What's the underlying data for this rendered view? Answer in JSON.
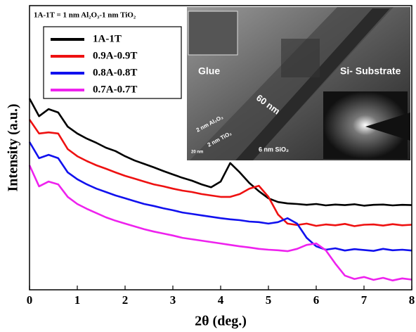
{
  "chart_data": {
    "type": "line",
    "annotation": "1A-1T = 1 nm Al₂O₃-1 nm TiO₂",
    "xlabel": "2θ (deg.)",
    "ylabel": "Intensity (a.u.)",
    "x": [
      0,
      0.2,
      0.4,
      0.6,
      0.8,
      1.0,
      1.2,
      1.4,
      1.6,
      1.8,
      2.0,
      2.2,
      2.4,
      2.6,
      2.8,
      3.0,
      3.2,
      3.4,
      3.6,
      3.8,
      4.0,
      4.2,
      4.4,
      4.6,
      4.8,
      5.0,
      5.2,
      5.4,
      5.6,
      5.8,
      6.0,
      6.2,
      6.4,
      6.6,
      6.8,
      7.0,
      7.2,
      7.4,
      7.6,
      7.8,
      8.0
    ],
    "xlim": [
      0,
      8
    ],
    "xticks": [
      0,
      1,
      2,
      3,
      4,
      5,
      6,
      7,
      8
    ],
    "ylim": [
      0,
      100
    ],
    "series": [
      {
        "name": "1A-1T",
        "color": "#000000",
        "values": [
          67.3,
          61.1,
          63.6,
          62.4,
          57.4,
          55,
          53.2,
          51.7,
          50,
          48.8,
          47,
          45.5,
          44.3,
          43.1,
          41.8,
          40.6,
          39.4,
          38.4,
          37.1,
          36.1,
          38.1,
          44.6,
          41.3,
          37.6,
          34.7,
          32.2,
          30.9,
          30.4,
          30.2,
          29.9,
          30.2,
          29.7,
          30.0,
          29.8,
          30.1,
          29.6,
          29.9,
          30.0,
          29.7,
          29.9,
          29.8
        ]
      },
      {
        "name": "0.9A-0.9T",
        "color": "#ee1111",
        "values": [
          59.9,
          55,
          55.4,
          55,
          49.5,
          47,
          45.3,
          43.8,
          42.6,
          41.3,
          40.1,
          39.1,
          38.1,
          37.1,
          36.4,
          35.6,
          34.9,
          34.4,
          33.7,
          33.2,
          32.7,
          32.7,
          33.7,
          35.6,
          36.6,
          32.7,
          26.5,
          23.3,
          22.8,
          23.3,
          22.5,
          23.0,
          22.7,
          23.2,
          22.4,
          22.9,
          23.0,
          22.6,
          23.1,
          22.7,
          22.9
        ]
      },
      {
        "name": "0.8A-0.8T",
        "color": "#1111ee",
        "values": [
          52,
          46.3,
          47.5,
          46.3,
          41.3,
          38.9,
          37.1,
          35.6,
          34.4,
          33.2,
          32.2,
          31.2,
          30.2,
          29.5,
          28.7,
          28,
          27.2,
          26.7,
          26.2,
          25.7,
          25.2,
          24.8,
          24.5,
          24,
          23.8,
          23.3,
          23.8,
          25.2,
          23.3,
          18.3,
          15.3,
          14.1,
          14.6,
          13.8,
          14.3,
          14.0,
          13.7,
          14.4,
          13.9,
          14.1,
          13.8
        ]
      },
      {
        "name": "0.7A-0.7T",
        "color": "#ee22ee",
        "values": [
          43.8,
          36.4,
          38.1,
          37.1,
          32.7,
          30.2,
          28.5,
          27,
          25.5,
          24.3,
          23.3,
          22.3,
          21.3,
          20.5,
          19.8,
          19.1,
          18.3,
          17.8,
          17.3,
          16.8,
          16.3,
          15.8,
          15.3,
          14.9,
          14.4,
          14.1,
          13.9,
          13.6,
          14.4,
          15.8,
          16.3,
          13.9,
          9.2,
          5,
          3.8,
          4.5,
          3.5,
          4.2,
          3.3,
          4.0,
          3.6
        ]
      }
    ],
    "inset_labels": [
      "Glue",
      "60 nm",
      "Si- Substrate",
      "2 nm Al₂O₃",
      "2 nm TiO₂",
      "6 nm SiO₂",
      "20 nm"
    ]
  }
}
